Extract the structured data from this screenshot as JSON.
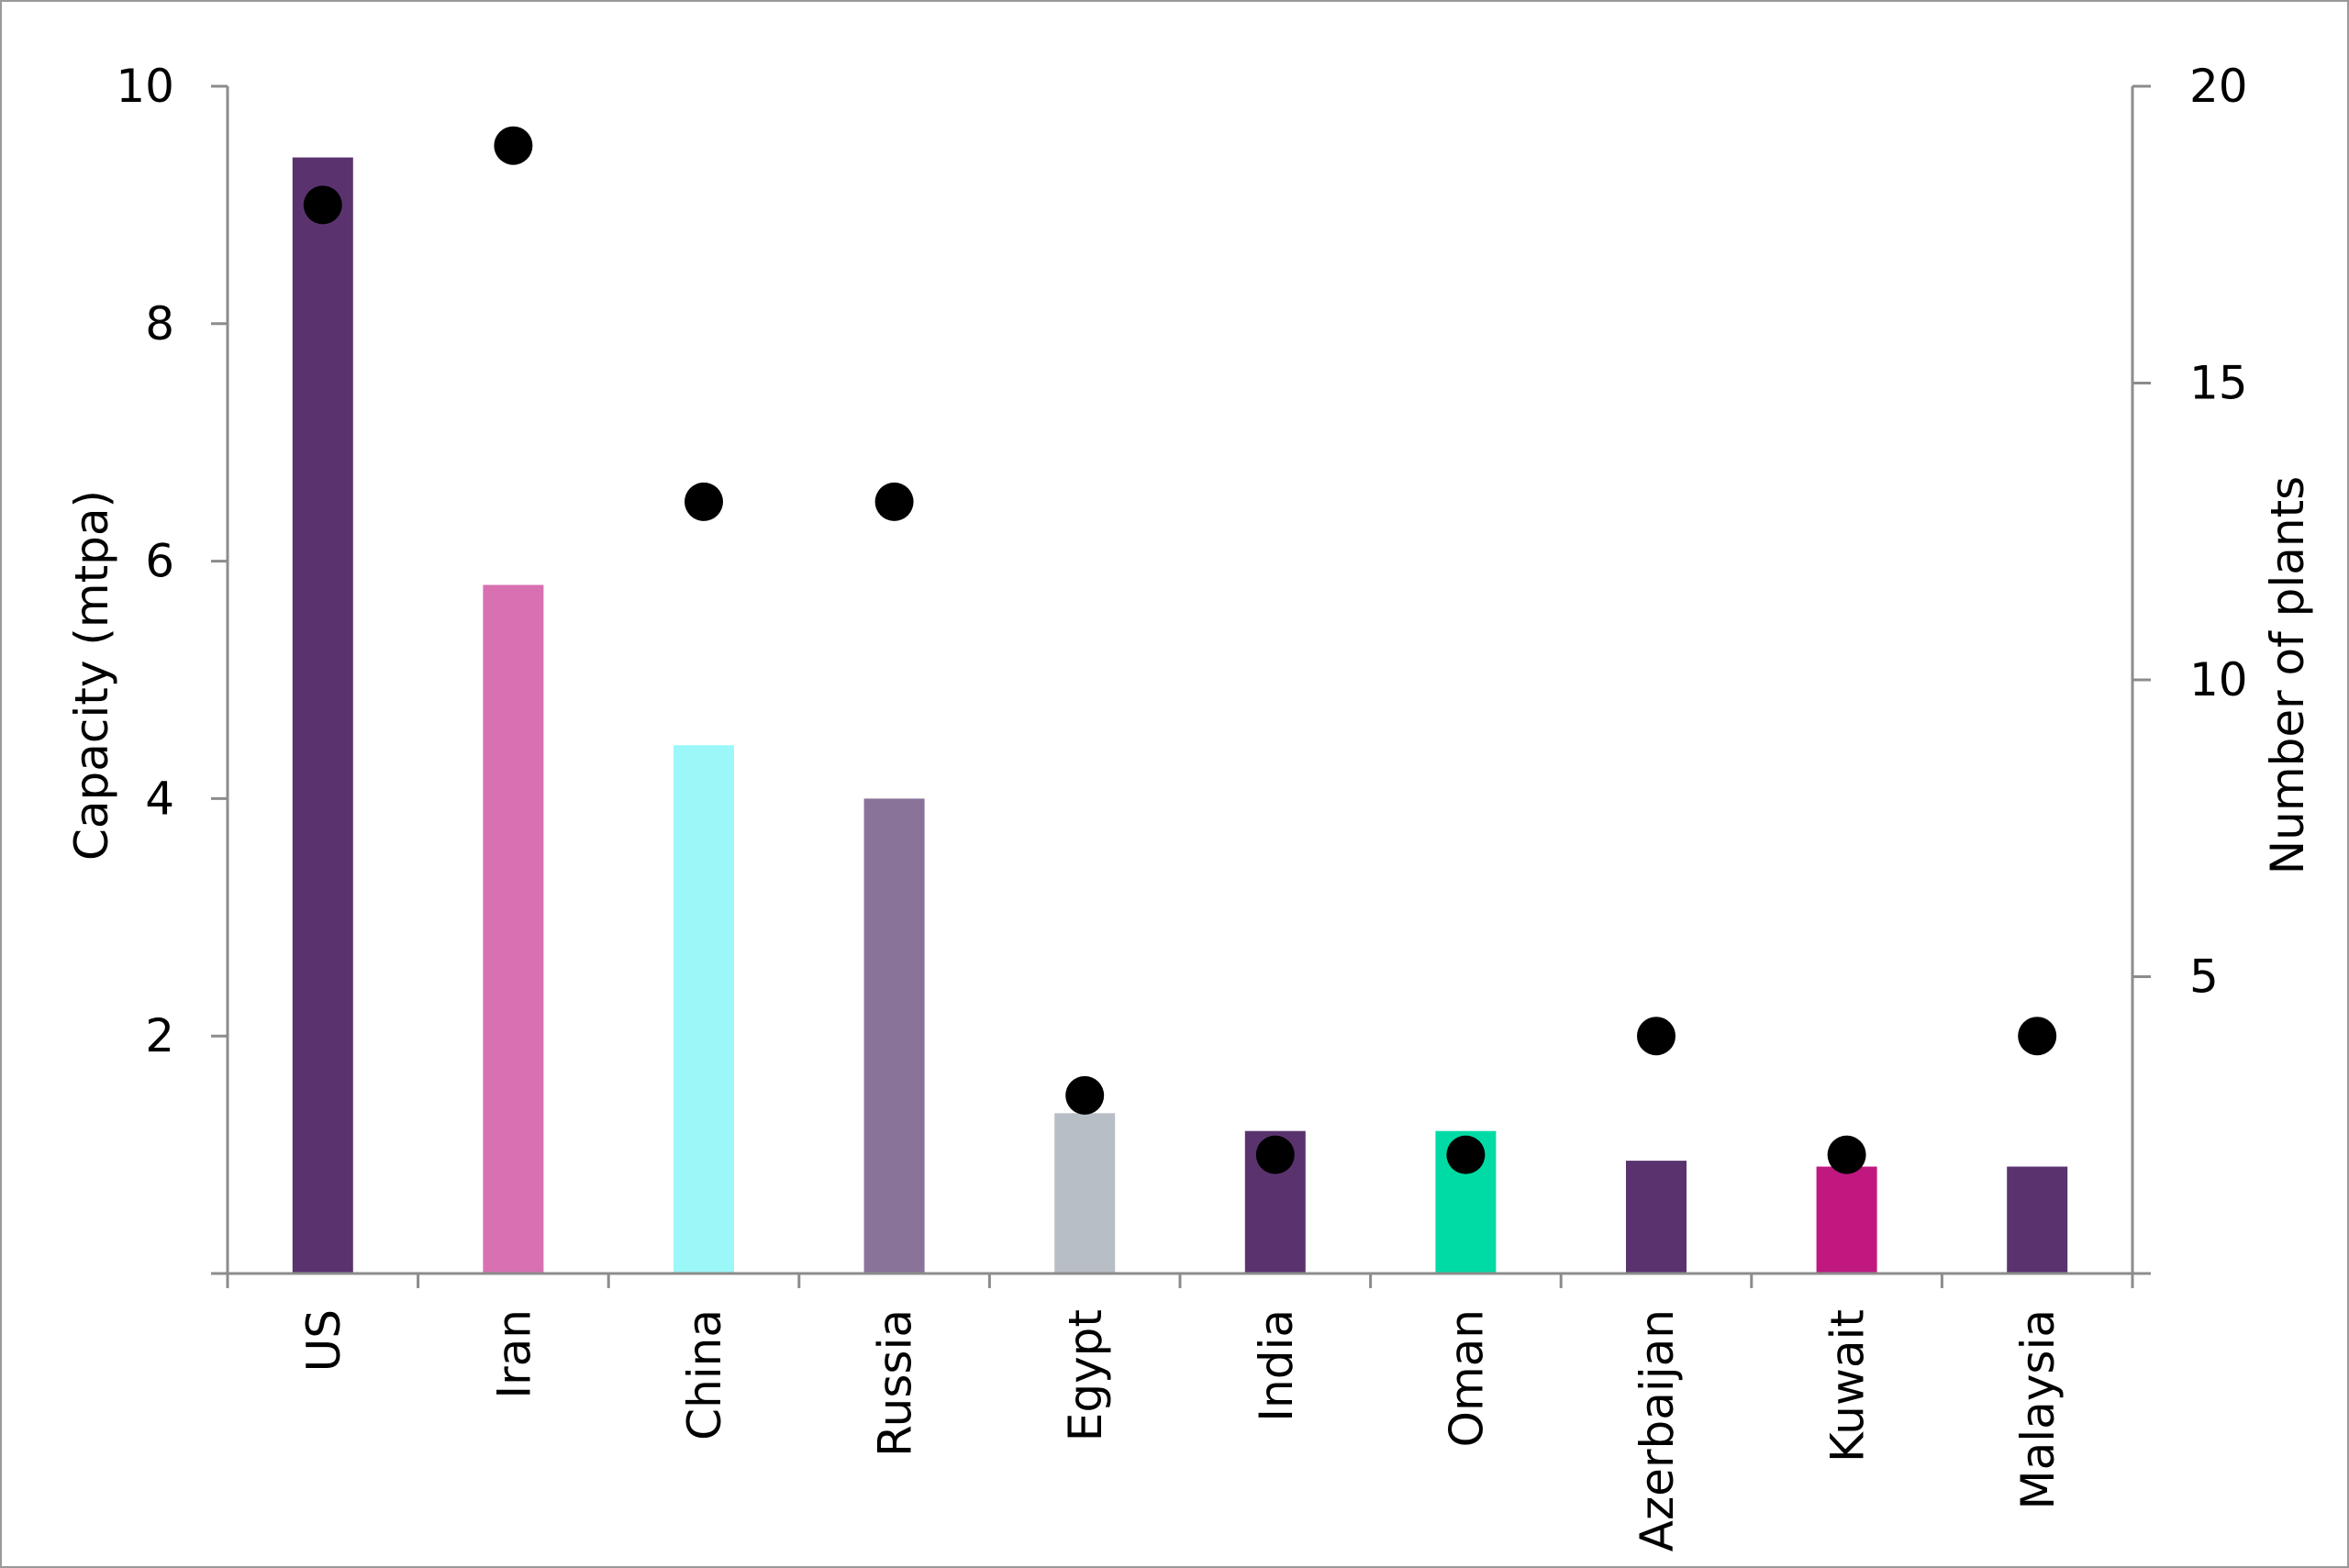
{
  "chart_data": {
    "type": "bar",
    "categories": [
      "US",
      "Iran",
      "China",
      "Russia",
      "Egypt",
      "India",
      "Oman",
      "Azerbaijan",
      "Kuwait",
      "Malaysia"
    ],
    "bar_colors": [
      "#5a336e",
      "#d870b2",
      "#9cf8f8",
      "#8a7399",
      "#b8bec5",
      "#5a336e",
      "#00dba5",
      "#5a336e",
      "#c0187f",
      "#5a336e"
    ],
    "series": [
      {
        "axis": "left",
        "type": "bar",
        "values": [
          9.4,
          5.8,
          4.45,
          4.0,
          1.35,
          1.2,
          1.2,
          0.95,
          0.9,
          0.9
        ]
      },
      {
        "axis": "right",
        "type": "scatter",
        "color": "#000000",
        "values": [
          18,
          19,
          13,
          13,
          3,
          2,
          2,
          4,
          2,
          4
        ]
      }
    ],
    "left_axis": {
      "label": "Capacity (mtpa)",
      "ylim": [
        0,
        10
      ],
      "ticks": [
        "2",
        "4",
        "6",
        "8",
        "10"
      ]
    },
    "right_axis": {
      "label": "Number of plants",
      "ylim": [
        0,
        20
      ],
      "ticks": [
        "5",
        "10",
        "15",
        "20"
      ]
    },
    "xlabel": "",
    "grid": false,
    "legend": "none"
  }
}
